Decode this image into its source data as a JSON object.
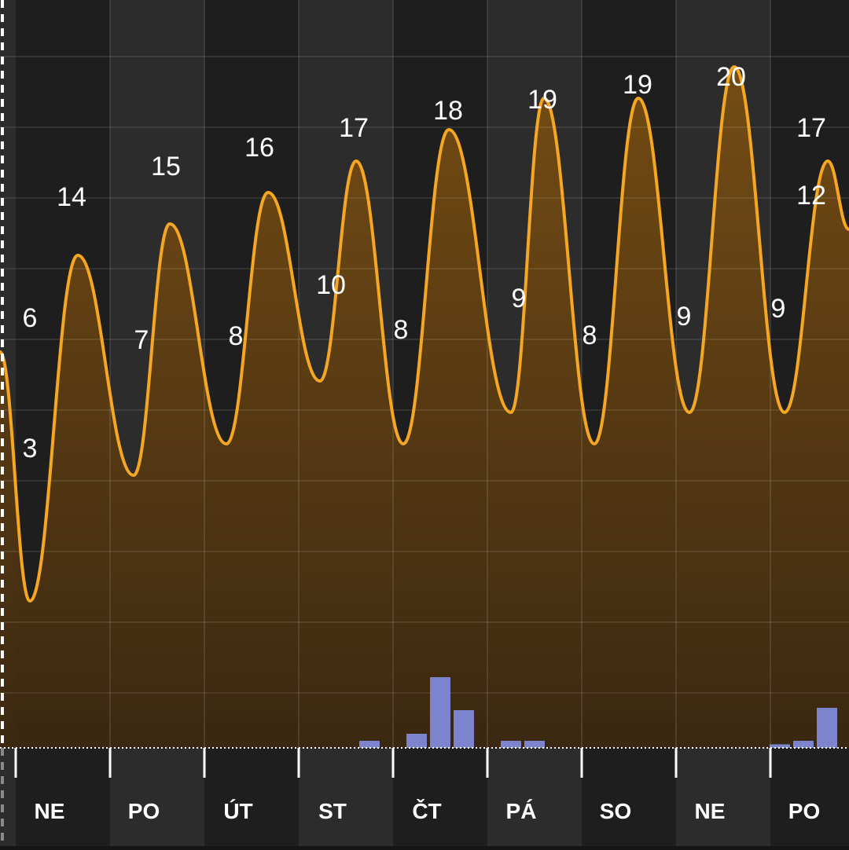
{
  "chart_data": {
    "type": "line",
    "days": [
      "NE",
      "PO",
      "ÚT",
      "ST",
      "ČT",
      "PÁ",
      "SO",
      "NE",
      "PO"
    ],
    "temperature_series": {
      "points": [
        {
          "value": 6,
          "label": "6",
          "kind": "start"
        },
        {
          "value": 3,
          "label": "3",
          "kind": "min"
        },
        {
          "value": 14,
          "label": "14",
          "kind": "max"
        },
        {
          "value": 7,
          "label": "7",
          "kind": "min"
        },
        {
          "value": 15,
          "label": "15",
          "kind": "max"
        },
        {
          "value": 8,
          "label": "8",
          "kind": "min"
        },
        {
          "value": 16,
          "label": "16",
          "kind": "max"
        },
        {
          "value": 10,
          "label": "10",
          "kind": "min"
        },
        {
          "value": 17,
          "label": "17",
          "kind": "max"
        },
        {
          "value": 8,
          "label": "8",
          "kind": "min"
        },
        {
          "value": 18,
          "label": "18",
          "kind": "max"
        },
        {
          "value": 9,
          "label": "9",
          "kind": "min"
        },
        {
          "value": 19,
          "label": "19",
          "kind": "max"
        },
        {
          "value": 8,
          "label": "8",
          "kind": "min"
        },
        {
          "value": 19,
          "label": "19",
          "kind": "max"
        },
        {
          "value": 9,
          "label": "9",
          "kind": "min"
        },
        {
          "value": 20,
          "label": "20",
          "kind": "max"
        },
        {
          "value": 9,
          "label": "9",
          "kind": "min"
        },
        {
          "value": 17,
          "label": "17",
          "kind": "max"
        },
        {
          "value": 12,
          "label": "12",
          "kind": "end"
        }
      ]
    },
    "precipitation_bars": {
      "day_index": [
        3,
        4,
        4,
        4,
        5,
        5,
        8,
        8,
        8
      ],
      "slot": [
        0.75,
        0.25,
        0.5,
        0.75,
        0.25,
        0.5,
        0.1,
        0.35,
        0.6
      ],
      "amount": [
        0.3,
        0.6,
        3.0,
        1.6,
        0.3,
        0.3,
        0.15,
        0.3,
        1.7
      ]
    },
    "colors": {
      "line": "#f5a623",
      "area_top": "#7a4f12",
      "area_bottom": "#3d2810",
      "bar": "#7b84cc",
      "day_band_dark": "#1e1e1e",
      "day_band_light": "#2c2c2c"
    },
    "grid": true
  }
}
